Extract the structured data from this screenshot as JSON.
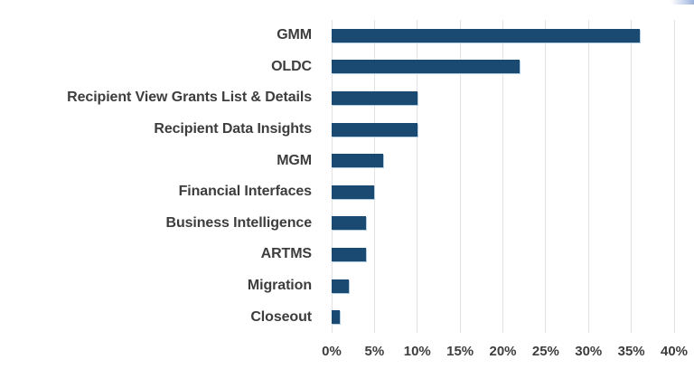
{
  "chart_data": {
    "type": "bar",
    "orientation": "horizontal",
    "title": "",
    "xlabel": "",
    "ylabel": "",
    "categories": [
      "GMM",
      "OLDC",
      "Recipient View Grants List & Details",
      "Recipient Data Insights",
      "MGM",
      "Financial Interfaces",
      "Business Intelligence",
      "ARTMS",
      "Migration",
      "Closeout"
    ],
    "values": [
      36,
      22,
      10,
      10,
      6,
      5,
      4,
      4,
      2,
      1
    ],
    "value_unit": "%",
    "xlim": [
      0,
      40
    ],
    "x_tick_step": 5,
    "x_tick_labels": [
      "0%",
      "5%",
      "10%",
      "15%",
      "20%",
      "25%",
      "30%",
      "35%",
      "40%"
    ],
    "grid": true,
    "legend": false,
    "colors": {
      "bar": "#1A4A72",
      "gridline": "#E2E2E2",
      "label_text": "#3D3D3D",
      "background": "#FFFFFF"
    }
  }
}
